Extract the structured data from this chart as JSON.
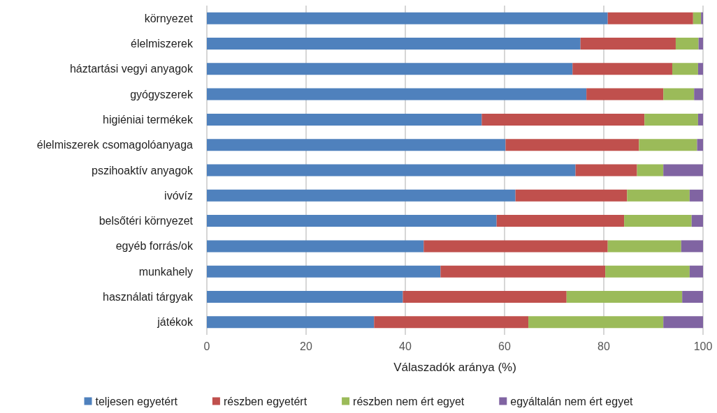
{
  "chart_data": {
    "type": "bar",
    "orientation": "horizontal",
    "stacked": true,
    "xlabel": "Válaszadók aránya (%)",
    "categories": [
      "környezet",
      "élelmiszerek",
      "háztartási vegyi anyagok",
      "gyógyszerek",
      "higiéniai termékek",
      "élelmiszerek csomagolóanyaga",
      "pszihoaktív anyagok",
      "ivóvíz",
      "belsőtéri környezet",
      "egyéb forrás/ok",
      "munkahely",
      "használati tárgyak",
      "játékok"
    ],
    "series": [
      {
        "name": "teljesen egyetért",
        "color": "#4f81bd",
        "values": [
          80.8,
          75.3,
          73.7,
          76.5,
          55.4,
          60.2,
          74.3,
          62.2,
          58.4,
          43.7,
          47.1,
          39.5,
          33.7
        ]
      },
      {
        "name": "részben egyetért",
        "color": "#c0504d",
        "values": [
          17.2,
          19.2,
          20.1,
          15.5,
          32.8,
          26.9,
          12.4,
          22.5,
          25.7,
          37.1,
          33.2,
          33.0,
          31.1
        ]
      },
      {
        "name": "részben nem ért egyet",
        "color": "#9bbb59",
        "values": [
          1.6,
          4.6,
          5.2,
          6.2,
          10.8,
          11.7,
          5.3,
          12.6,
          13.6,
          14.8,
          17.0,
          23.3,
          27.2
        ]
      },
      {
        "name": "egyáltalán nem ért egyet",
        "color": "#8064a2",
        "values": [
          0.4,
          0.9,
          1.0,
          1.8,
          1.0,
          1.2,
          8.0,
          2.7,
          2.3,
          4.4,
          2.7,
          4.2,
          8.0
        ]
      }
    ],
    "xlim": [
      0,
      100
    ],
    "xticks": [
      0,
      20,
      40,
      60,
      80,
      100
    ],
    "grid": "x",
    "legend": "bottom"
  }
}
